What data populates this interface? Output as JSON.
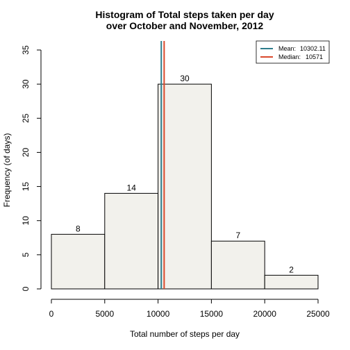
{
  "chart_data": {
    "type": "bar",
    "title": [
      "Histogram of Total steps taken per day",
      "over October and November, 2012"
    ],
    "xlabel": "Total number of steps per day",
    "ylabel": "Frequency (of days)",
    "bins": [
      {
        "start": 0,
        "end": 5000,
        "count": 8,
        "label": "8"
      },
      {
        "start": 5000,
        "end": 10000,
        "count": 14,
        "label": "14"
      },
      {
        "start": 10000,
        "end": 15000,
        "count": 30,
        "label": "30"
      },
      {
        "start": 15000,
        "end": 20000,
        "count": 7,
        "label": "7"
      },
      {
        "start": 20000,
        "end": 25000,
        "count": 2,
        "label": "2"
      }
    ],
    "xlim": [
      0,
      25000
    ],
    "ylim": [
      0,
      35
    ],
    "xticks": [
      0,
      5000,
      10000,
      15000,
      20000,
      25000
    ],
    "xtick_labels": [
      "0",
      "5000",
      "10000",
      "15000",
      "20000",
      "25000"
    ],
    "yticks": [
      0,
      5,
      10,
      15,
      20,
      25,
      30,
      35
    ],
    "ytick_labels": [
      "0",
      "5",
      "10",
      "15",
      "20",
      "25",
      "30",
      "35"
    ],
    "bar_fill": "#f2f1ec",
    "bar_stroke": "#000000",
    "vlines": [
      {
        "name": "Mean",
        "value": 10302.11,
        "value_label": "10302.11",
        "color": "#2e7d8c"
      },
      {
        "name": "Median",
        "value": 10571,
        "value_label": "10571",
        "color": "#d9482b"
      }
    ],
    "legend": {
      "position": "top-right",
      "entries": [
        {
          "label": "Mean:",
          "value": "10302.11",
          "color": "#2e7d8c"
        },
        {
          "label": "Median:",
          "value": "10571",
          "color": "#d9482b"
        }
      ]
    },
    "grid": false
  }
}
